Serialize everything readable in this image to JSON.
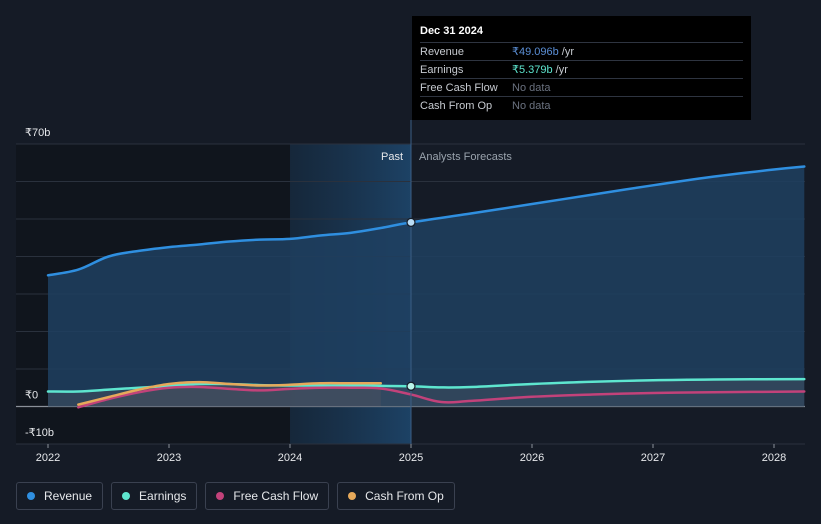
{
  "colors": {
    "revenue": "#2f8fe0",
    "earnings": "#5ee6cf",
    "fcf": "#c2427a",
    "cfo": "#e6a95a",
    "background": "#151b26",
    "tooltip_bg": "#000000"
  },
  "tooltip": {
    "date": "Dec 31 2024",
    "rows": [
      {
        "name": "Revenue",
        "value": "₹49.096b",
        "unit": "/yr",
        "color": "#5b8fd6"
      },
      {
        "name": "Earnings",
        "value": "₹5.379b",
        "unit": "/yr",
        "color": "#5ee6cf"
      },
      {
        "name": "Free Cash Flow",
        "value": "No data",
        "unit": "",
        "color": "#6b7280"
      },
      {
        "name": "Cash From Op",
        "value": "No data",
        "unit": "",
        "color": "#6b7280"
      }
    ]
  },
  "legend": [
    {
      "label": "Revenue",
      "color": "#2f8fe0"
    },
    {
      "label": "Earnings",
      "color": "#5ee6cf"
    },
    {
      "label": "Free Cash Flow",
      "color": "#c2427a"
    },
    {
      "label": "Cash From Op",
      "color": "#e6a95a"
    }
  ],
  "chart_data": {
    "type": "line",
    "y_unit": "₹ billions",
    "ylim": [
      -10,
      70
    ],
    "y_tick_labels": [
      {
        "value": 70,
        "label": "₹70b"
      },
      {
        "value": 0,
        "label": "₹0"
      },
      {
        "value": -10,
        "label": "-₹10b"
      }
    ],
    "xlim": [
      2021.75,
      2028.25
    ],
    "x_ticks": [
      2022,
      2023,
      2024,
      2025,
      2026,
      2027,
      2028
    ],
    "past_label": "Past",
    "forecast_label": "Analysts Forecasts",
    "forecast_start": 2025.0,
    "highlight_start": 2024.0,
    "grid": true,
    "series": [
      {
        "name": "Revenue",
        "key": "revenue",
        "points": [
          [
            2022.0,
            35.0
          ],
          [
            2022.25,
            36.5
          ],
          [
            2022.5,
            40.0
          ],
          [
            2022.75,
            41.5
          ],
          [
            2023.0,
            42.5
          ],
          [
            2023.25,
            43.2
          ],
          [
            2023.5,
            44.0
          ],
          [
            2023.75,
            44.5
          ],
          [
            2024.0,
            44.7
          ],
          [
            2024.25,
            45.6
          ],
          [
            2024.5,
            46.3
          ],
          [
            2024.75,
            47.6
          ],
          [
            2025.0,
            49.1
          ],
          [
            2025.5,
            51.5
          ],
          [
            2026.0,
            54.0
          ],
          [
            2026.5,
            56.5
          ],
          [
            2027.0,
            59.0
          ],
          [
            2027.5,
            61.3
          ],
          [
            2028.0,
            63.2
          ],
          [
            2028.25,
            64.0
          ]
        ]
      },
      {
        "name": "Earnings",
        "key": "earnings",
        "points": [
          [
            2022.0,
            4.0
          ],
          [
            2022.25,
            4.0
          ],
          [
            2022.5,
            4.5
          ],
          [
            2022.75,
            5.0
          ],
          [
            2023.0,
            5.5
          ],
          [
            2023.25,
            6.0
          ],
          [
            2023.5,
            6.0
          ],
          [
            2023.75,
            5.7
          ],
          [
            2024.0,
            5.6
          ],
          [
            2024.25,
            5.6
          ],
          [
            2024.5,
            5.6
          ],
          [
            2024.75,
            5.5
          ],
          [
            2025.0,
            5.4
          ],
          [
            2025.25,
            5.1
          ],
          [
            2025.5,
            5.2
          ],
          [
            2026.0,
            6.0
          ],
          [
            2026.5,
            6.6
          ],
          [
            2027.0,
            7.0
          ],
          [
            2027.5,
            7.2
          ],
          [
            2028.25,
            7.3
          ]
        ]
      },
      {
        "name": "Free Cash Flow",
        "key": "fcf",
        "points": [
          [
            2022.25,
            -0.2
          ],
          [
            2022.5,
            2.0
          ],
          [
            2022.75,
            3.8
          ],
          [
            2023.0,
            5.0
          ],
          [
            2023.25,
            5.2
          ],
          [
            2023.5,
            4.7
          ],
          [
            2023.75,
            4.3
          ],
          [
            2024.0,
            4.7
          ],
          [
            2024.25,
            5.0
          ],
          [
            2024.5,
            5.0
          ],
          [
            2024.75,
            4.8
          ],
          [
            2025.0,
            3.2
          ],
          [
            2025.25,
            1.2
          ],
          [
            2025.5,
            1.5
          ],
          [
            2026.0,
            2.6
          ],
          [
            2026.5,
            3.2
          ],
          [
            2027.0,
            3.6
          ],
          [
            2027.5,
            3.8
          ],
          [
            2028.25,
            4.0
          ]
        ]
      },
      {
        "name": "Cash From Op",
        "key": "cfo",
        "points": [
          [
            2022.25,
            0.5
          ],
          [
            2022.5,
            2.5
          ],
          [
            2022.75,
            4.5
          ],
          [
            2023.0,
            6.0
          ],
          [
            2023.25,
            6.5
          ],
          [
            2023.5,
            6.0
          ],
          [
            2023.75,
            5.6
          ],
          [
            2024.0,
            5.8
          ],
          [
            2024.25,
            6.2
          ],
          [
            2024.5,
            6.2
          ],
          [
            2024.75,
            6.2
          ]
        ]
      }
    ],
    "markers": [
      {
        "series": "revenue",
        "x": 2025.0,
        "y": 49.1
      },
      {
        "series": "earnings",
        "x": 2025.0,
        "y": 5.4
      }
    ]
  }
}
